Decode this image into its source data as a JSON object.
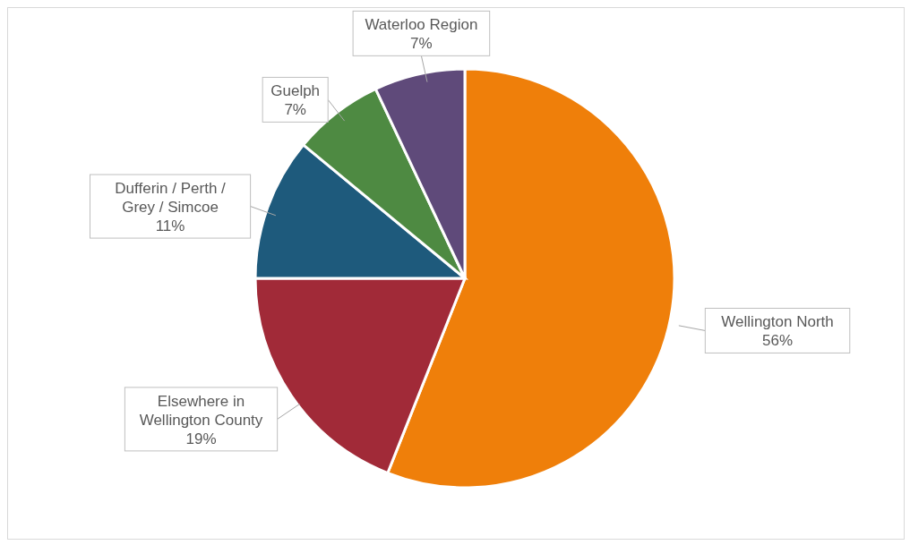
{
  "chart_data": {
    "type": "pie",
    "categories": [
      "Wellington North",
      "Elsewhere in Wellington County",
      "Dufferin / Perth / Grey / Simcoe",
      "Guelph",
      "Waterloo Region"
    ],
    "values": [
      56,
      19,
      11,
      7,
      7
    ],
    "colors": [
      "#ef7f0a",
      "#a12a38",
      "#1e5a7c",
      "#4e8a42",
      "#5f4a7a"
    ],
    "value_labels": [
      "56%",
      "19%",
      "11%",
      "7%",
      "7%"
    ],
    "legend": false
  }
}
